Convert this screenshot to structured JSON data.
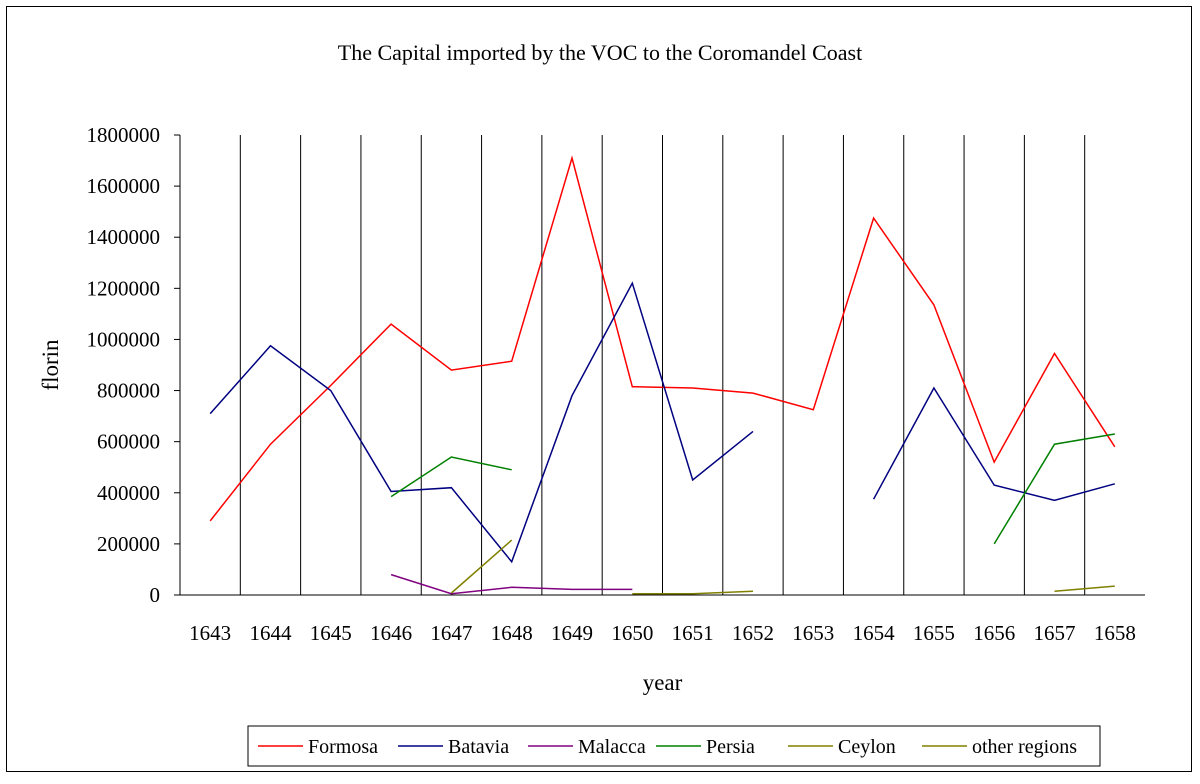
{
  "chart_data": {
    "type": "line",
    "title": "The Capital imported by the VOC to the Coromandel Coast",
    "xlabel": "year",
    "ylabel": "florin",
    "ylim": [
      0,
      1800000
    ],
    "yticks": [
      0,
      200000,
      400000,
      600000,
      800000,
      1000000,
      1200000,
      1400000,
      1600000,
      1800000
    ],
    "categories": [
      "1643",
      "1644",
      "1645",
      "1646",
      "1647",
      "1648",
      "1649",
      "1650",
      "1651",
      "1652",
      "1653",
      "1654",
      "1655",
      "1656",
      "1657",
      "1658"
    ],
    "grid": "vertical",
    "legend_position": "bottom",
    "series": [
      {
        "name": "Formosa",
        "color": "#ff0000",
        "values": [
          290000,
          590000,
          820000,
          1060000,
          880000,
          915000,
          1710000,
          815000,
          810000,
          790000,
          725000,
          1475000,
          1135000,
          520000,
          945000,
          580000
        ]
      },
      {
        "name": "Batavia",
        "color": "#000080",
        "values": [
          710000,
          975000,
          800000,
          405000,
          420000,
          130000,
          780000,
          1220000,
          450000,
          640000,
          null,
          375000,
          810000,
          430000,
          370000,
          435000
        ]
      },
      {
        "name": "Malacca",
        "color": "#800080",
        "values": [
          null,
          null,
          null,
          80000,
          5000,
          30000,
          22000,
          22000,
          null,
          null,
          null,
          null,
          null,
          null,
          null,
          null
        ]
      },
      {
        "name": "Persia",
        "color": "#008000",
        "values": [
          null,
          null,
          null,
          385000,
          540000,
          490000,
          null,
          null,
          null,
          null,
          null,
          null,
          null,
          200000,
          590000,
          630000
        ]
      },
      {
        "name": "Ceylon",
        "color": "#808000",
        "values": [
          null,
          null,
          null,
          null,
          null,
          null,
          null,
          5000,
          5000,
          15000,
          null,
          null,
          null,
          null,
          null,
          null
        ]
      },
      {
        "name": "other regions",
        "color": "#808000",
        "values": [
          null,
          null,
          null,
          null,
          8000,
          215000,
          null,
          null,
          null,
          null,
          null,
          null,
          null,
          null,
          15000,
          35000
        ]
      }
    ]
  }
}
